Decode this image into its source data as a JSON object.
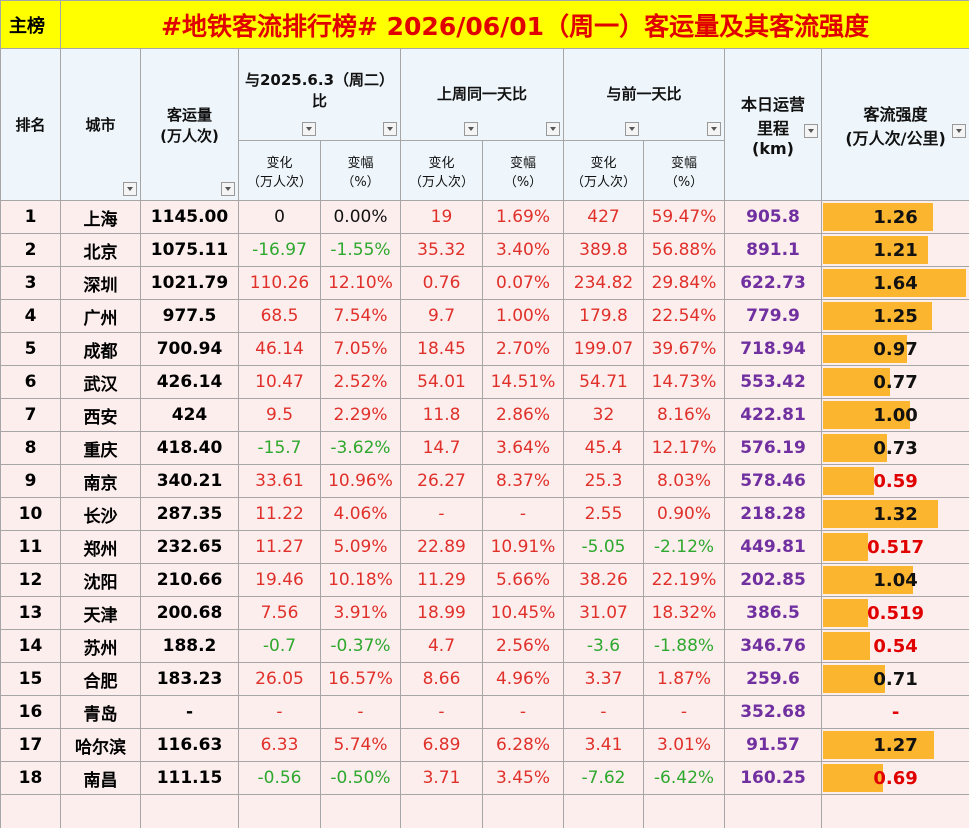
{
  "title_tag": "主榜",
  "title": "#地铁客流排行榜# 2026/06/01（周一）客运量及其客流强度",
  "header": {
    "rank": "排名",
    "city": "城市",
    "volume": [
      "客运量",
      "(万人次)"
    ],
    "groups": [
      [
        "与2025.6.3（周二）",
        "比"
      ],
      [
        "上周同一天比"
      ],
      [
        "与前一天比"
      ]
    ],
    "sub": [
      [
        "变化",
        "（万人次）"
      ],
      [
        "变幅",
        "（%）"
      ]
    ],
    "mileage": [
      "本日运营",
      "里程",
      "(km)"
    ],
    "intensity": [
      "客流强度",
      "(万人次/公里)"
    ]
  },
  "table": {
    "rows": [
      [
        "1",
        "上海",
        "1145.00",
        "0",
        "0.00%",
        "19",
        "1.69%",
        "427",
        "59.47%",
        "905.8",
        "1.26"
      ],
      [
        "2",
        "北京",
        "1075.11",
        "-16.97",
        "-1.55%",
        "35.32",
        "3.40%",
        "389.8",
        "56.88%",
        "891.1",
        "1.21"
      ],
      [
        "3",
        "深圳",
        "1021.79",
        "110.26",
        "12.10%",
        "0.76",
        "0.07%",
        "234.82",
        "29.84%",
        "622.73",
        "1.64"
      ],
      [
        "4",
        "广州",
        "977.5",
        "68.5",
        "7.54%",
        "9.7",
        "1.00%",
        "179.8",
        "22.54%",
        "779.9",
        "1.25"
      ],
      [
        "5",
        "成都",
        "700.94",
        "46.14",
        "7.05%",
        "18.45",
        "2.70%",
        "199.07",
        "39.67%",
        "718.94",
        "0.97"
      ],
      [
        "6",
        "武汉",
        "426.14",
        "10.47",
        "2.52%",
        "54.01",
        "14.51%",
        "54.71",
        "14.73%",
        "553.42",
        "0.77"
      ],
      [
        "7",
        "西安",
        "424",
        "9.5",
        "2.29%",
        "11.8",
        "2.86%",
        "32",
        "8.16%",
        "422.81",
        "1.00"
      ],
      [
        "8",
        "重庆",
        "418.40",
        "-15.7",
        "-3.62%",
        "14.7",
        "3.64%",
        "45.4",
        "12.17%",
        "576.19",
        "0.73"
      ],
      [
        "9",
        "南京",
        "340.21",
        "33.61",
        "10.96%",
        "26.27",
        "8.37%",
        "25.3",
        "8.03%",
        "578.46",
        "0.59"
      ],
      [
        "10",
        "长沙",
        "287.35",
        "11.22",
        "4.06%",
        "-",
        "-",
        "2.55",
        "0.90%",
        "218.28",
        "1.32"
      ],
      [
        "11",
        "郑州",
        "232.65",
        "11.27",
        "5.09%",
        "22.89",
        "10.91%",
        "-5.05",
        "-2.12%",
        "449.81",
        "0.517"
      ],
      [
        "12",
        "沈阳",
        "210.66",
        "19.46",
        "10.18%",
        "11.29",
        "5.66%",
        "38.26",
        "22.19%",
        "202.85",
        "1.04"
      ],
      [
        "13",
        "天津",
        "200.68",
        "7.56",
        "3.91%",
        "18.99",
        "10.45%",
        "31.07",
        "18.32%",
        "386.5",
        "0.519"
      ],
      [
        "14",
        "苏州",
        "188.2",
        "-0.7",
        "-0.37%",
        "4.7",
        "2.56%",
        "-3.6",
        "-1.88%",
        "346.76",
        "0.54"
      ],
      [
        "15",
        "合肥",
        "183.23",
        "26.05",
        "16.57%",
        "8.66",
        "4.96%",
        "3.37",
        "1.87%",
        "259.6",
        "0.71"
      ],
      [
        "16",
        "青岛",
        "-",
        "-",
        "-",
        "-",
        "-",
        "-",
        "-",
        "352.68",
        "-"
      ],
      [
        "17",
        "哈尔滨",
        "116.63",
        "6.33",
        "5.74%",
        "6.89",
        "6.28%",
        "3.41",
        "3.01%",
        "91.57",
        "1.27"
      ],
      [
        "18",
        "南昌",
        "111.15",
        "-0.56",
        "-0.50%",
        "3.71",
        "3.45%",
        "-7.62",
        "-6.42%",
        "160.25",
        "0.69"
      ]
    ]
  }
}
